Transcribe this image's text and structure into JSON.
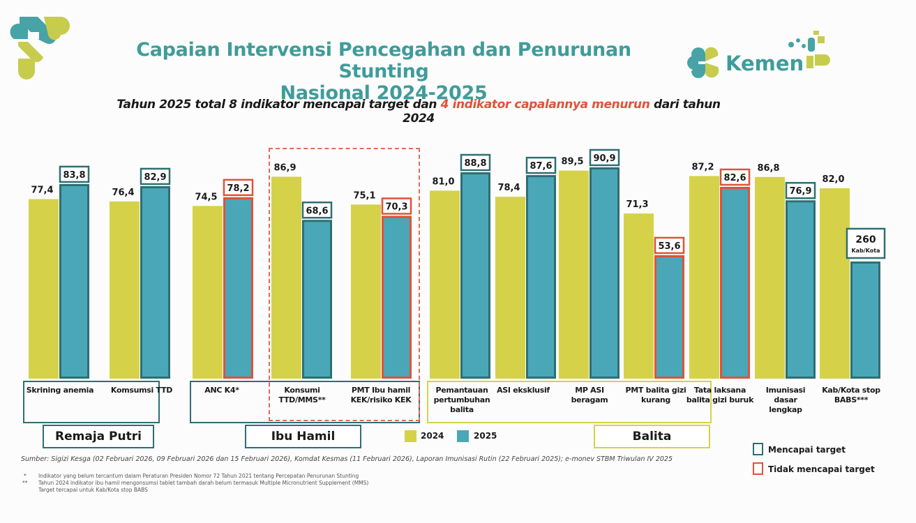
{
  "header": {
    "title_line1": "Capaian Intervensi Pencegahan dan Penurunan Stunting",
    "title_line2": "Nasional 2024-2025",
    "subtitle_part1": "Tahun 2025 total 8 indikator mencapai target dan ",
    "subtitle_highlight": "4 indikator capalannya menurun",
    "subtitle_part2": " dari tahun 2024",
    "brand_text": "Kemen"
  },
  "colors": {
    "series_2024": "#d5d24a",
    "series_2025": "#4aa7b8",
    "achieved_border": "#2f6e72",
    "not_achieved_border": "#e0523a",
    "title": "#3f9c9a"
  },
  "chart_data": {
    "type": "bar",
    "title": "Capaian Intervensi Pencegahan dan Penurunan Stunting Nasional 2024-2025",
    "xlabel": "",
    "ylabel": "",
    "grid": false,
    "legend_position": "bottom",
    "categories": [
      "Skrining anemia",
      "Komsumsi TTD",
      "ANC K4*",
      "Konsumsi TTD/MMS**",
      "PMT Ibu hamil KEK/risiko KEK",
      "Pemantauan pertumbuhan balita",
      "ASI eksklusif",
      "MP ASI beragam",
      "PMT balita gizi kurang",
      "Tata laksana balita gizi buruk",
      "Imunisasi dasar lengkap",
      "Kab/Kota stop BABS***"
    ],
    "category_labels_display": [
      "Skrining anemia",
      "Komsumsi TTD",
      "ANC K4*",
      "Konsumi\nTTD/MMS**",
      "PMT Ibu hamil\nKEK/risiko KEK",
      "Pemantauan\npertumbuhan\nbalita",
      "ASI eksklusif",
      "MP ASI\nberagam",
      "PMT balita gizi\nkurang",
      "Tata laksana\nbalita gizi buruk",
      "Imunisasi\ndasar\nlengkap",
      "Kab/Kota stop\nBABS***"
    ],
    "series": [
      {
        "name": "2024",
        "values": [
          77.4,
          76.4,
          74.5,
          86.9,
          75.1,
          81.0,
          78.4,
          89.5,
          71.3,
          87.2,
          86.8,
          82.0
        ],
        "labels": [
          "77,4",
          "76,4",
          "74,5",
          "86,9",
          "75,1",
          "81,0",
          "78,4",
          "89,5",
          "71,3",
          "87,2",
          "86,8",
          "82,0"
        ]
      },
      {
        "name": "2025",
        "values": [
          83.8,
          82.9,
          78.2,
          68.6,
          70.3,
          88.8,
          87.6,
          90.9,
          53.6,
          82.6,
          76.9,
          260
        ],
        "labels": [
          "83,8",
          "82,9",
          "78,2",
          "68,6",
          "70,3",
          "88,8",
          "87,6",
          "90,9",
          "53,6",
          "82,6",
          "76,9",
          "260"
        ],
        "sublabels": [
          "",
          "",
          "",
          "",
          "",
          "",
          "",
          "",
          "",
          "",
          "",
          "Kab/Kota"
        ],
        "target_status": [
          "achieved",
          "achieved",
          "not_achieved",
          "achieved",
          "not_achieved",
          "achieved",
          "achieved",
          "achieved",
          "not_achieved",
          "not_achieved",
          "achieved",
          "achieved"
        ]
      }
    ],
    "groups": [
      {
        "name": "Remaja Putri",
        "categories": [
          0,
          1
        ]
      },
      {
        "name": "Ibu Hamil",
        "categories": [
          2,
          3,
          4
        ]
      },
      {
        "name": "Balita",
        "categories": [
          5,
          6,
          7,
          8,
          9,
          10,
          11
        ]
      }
    ],
    "highlighted_categories": [
      3,
      4
    ],
    "notes": {
      "last_2025_value_unit": "Kab/Kota (count, not percent)"
    }
  },
  "legend": {
    "series_2024": "2024",
    "series_2025": "2025",
    "achieved": "Mencapai target",
    "not_achieved": "Tidak mencapai target"
  },
  "footer": {
    "source": "Sumber: Sigizi Kesga (02 Februari 2026, 09 Februari 2026 dan 15 Februari 2026), Komdat Kesmas (11 Februari 2026), Laporan Imunisasi Rutin (22 Februari 2025); e-monev STBM Triwulan IV 2025",
    "note1_marker": "*",
    "note1": "Indikator yang belum tercantum dalam Peraturan Presiden Nomor 72 Tahun 2021 tentang Percepatan Penurunan Stunting",
    "note2_marker": "**",
    "note2": "Tahun 2024 indikator ibu hamil mengonsumsi tablet tambah darah belum termasuk Multiple Micronutrient Supplement (MMS)",
    "note3": "Target tercapai untuk Kab/Kota stop BABS"
  }
}
